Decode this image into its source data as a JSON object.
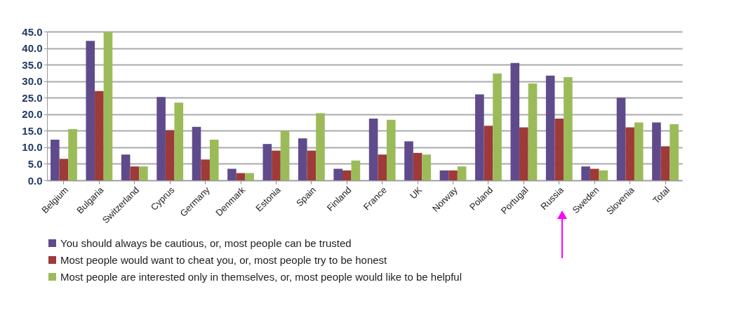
{
  "chart_data": {
    "type": "bar",
    "categories": [
      "Belgium",
      "Bulgaria",
      "Switzerland",
      "Cyprus",
      "Germany",
      "Denmark",
      "Estonia",
      "Spain",
      "Finland",
      "France",
      "UK",
      "Norway",
      "Poland",
      "Portugal",
      "Russia",
      "Sweden",
      "Slovenia",
      "Total"
    ],
    "series": [
      {
        "name": "You should always be cautious, or, most people can be trusted",
        "color": "#5f4b8b",
        "values": [
          12.3,
          42.2,
          7.8,
          25.2,
          16.2,
          3.5,
          11.0,
          12.7,
          3.5,
          18.7,
          11.8,
          3.0,
          26.0,
          35.5,
          31.7,
          4.2,
          25.0,
          17.5
        ]
      },
      {
        "name": "Most people would want to cheat you, or, most people try to be honest",
        "color": "#9e3a38",
        "values": [
          6.5,
          27.0,
          4.2,
          15.2,
          6.3,
          2.2,
          9.0,
          9.0,
          3.0,
          7.8,
          8.3,
          3.0,
          16.5,
          16.0,
          18.7,
          3.5,
          16.0,
          10.3
        ]
      },
      {
        "name": "Most people are interested only in themselves, or, most people would like to be helpful",
        "color": "#9bbb59",
        "values": [
          15.5,
          44.8,
          4.2,
          23.5,
          12.3,
          2.2,
          15.0,
          20.3,
          6.0,
          18.3,
          7.8,
          4.2,
          32.3,
          29.3,
          31.2,
          3.0,
          17.5,
          17.0
        ]
      }
    ],
    "ylim": [
      0,
      45
    ],
    "yticks": [
      {
        "value": 0,
        "label": "0.0"
      },
      {
        "value": 5,
        "label": "5.0"
      },
      {
        "value": 10,
        "label": "10.0"
      },
      {
        "value": 15,
        "label": "15.0"
      },
      {
        "value": 20,
        "label": "20.0"
      },
      {
        "value": 25,
        "label": "25.0"
      },
      {
        "value": 30,
        "label": "30.0"
      },
      {
        "value": 35,
        "label": "35.0"
      },
      {
        "value": 40,
        "label": "40.0"
      },
      {
        "value": 45,
        "label": "45.0"
      }
    ],
    "grid": "y",
    "legend": "bottom"
  }
}
